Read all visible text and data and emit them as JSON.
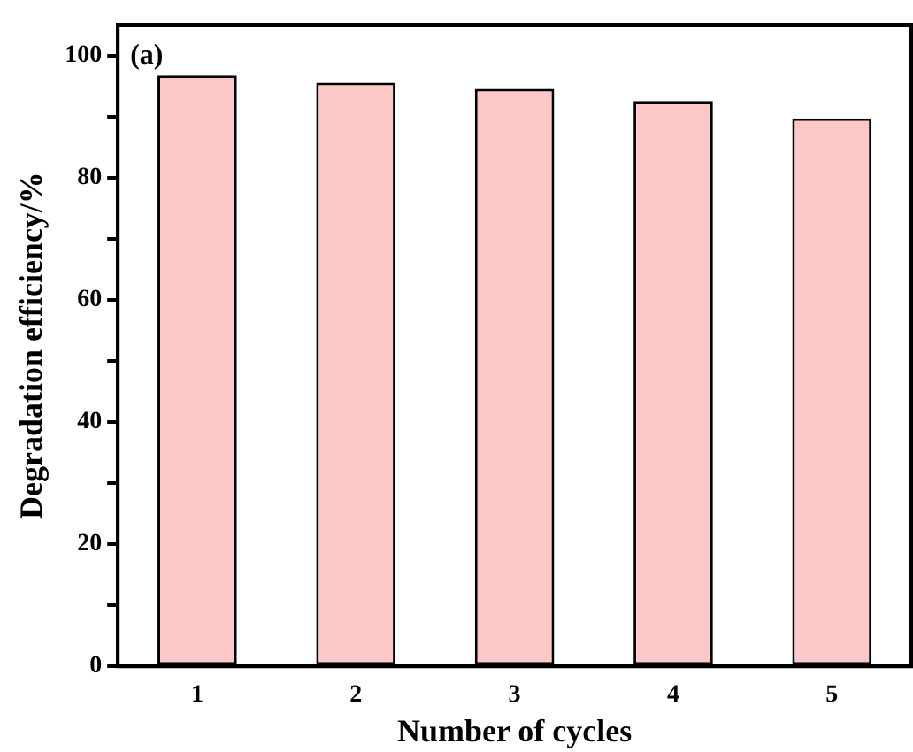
{
  "chart_data": {
    "type": "bar",
    "xlabel": "Number of cycles",
    "ylabel": "Degradation efficiency/%",
    "annotations": [
      "(a)"
    ],
    "categories": [
      "1",
      "2",
      "3",
      "4",
      "5"
    ],
    "values": [
      96.7,
      95.5,
      94.5,
      92.5,
      89.7
    ],
    "color": "#ffc8c8",
    "ylim": [
      0,
      105
    ],
    "yticks": [
      0,
      {
        "value": 10,
        "label": null
      },
      20,
      {
        "value": 30,
        "label": null
      },
      40,
      {
        "value": 50,
        "label": null
      },
      60,
      {
        "value": 70,
        "label": null
      },
      80,
      {
        "value": 90,
        "label": null
      },
      100
    ],
    "grid": false,
    "legend": false
  }
}
